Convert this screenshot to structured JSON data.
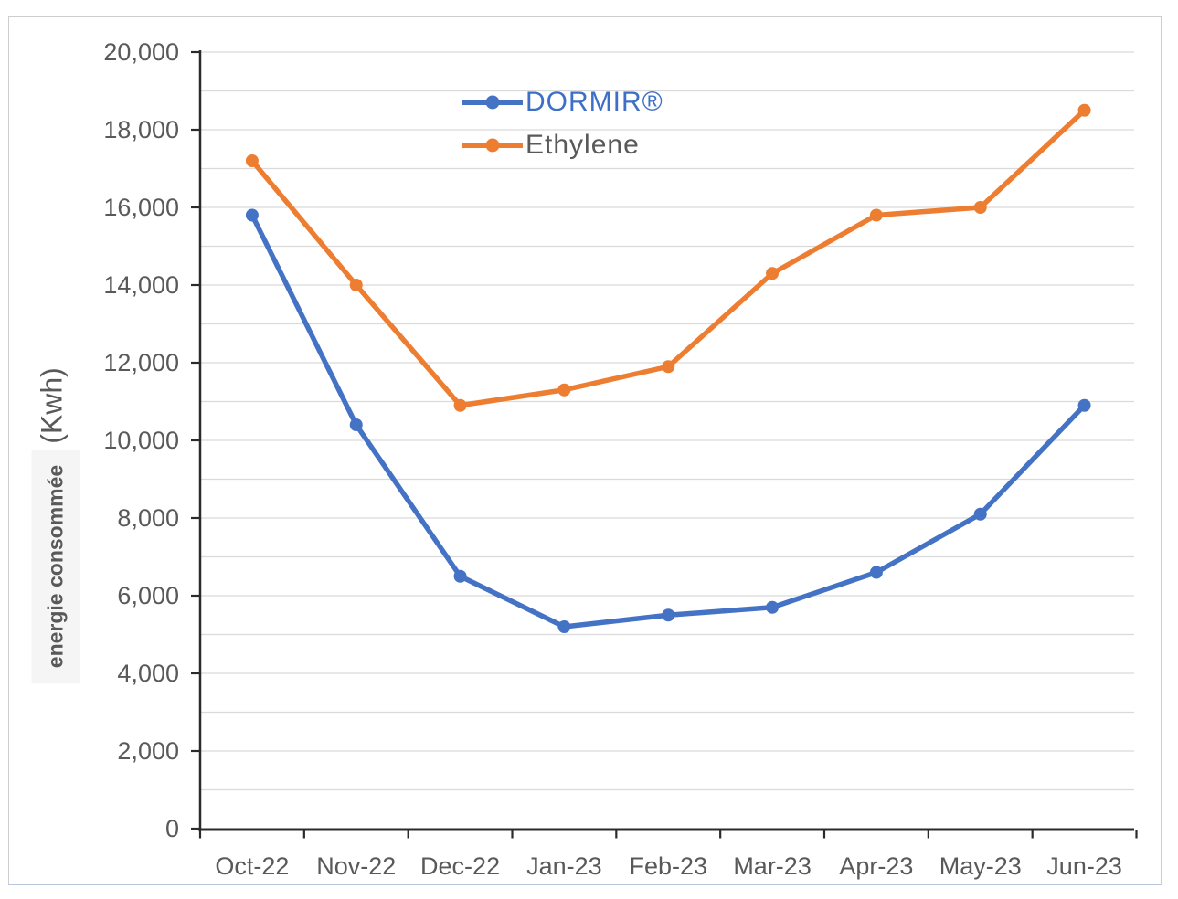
{
  "chart_data": {
    "type": "line",
    "title": "",
    "categories": [
      "Oct-22",
      "Nov-22",
      "Dec-22",
      "Jan-23",
      "Feb-23",
      "Mar-23",
      "Apr-23",
      "May-23",
      "Jun-23"
    ],
    "series": [
      {
        "name": "DORMIR®",
        "color": "#4472C4",
        "values": [
          15800,
          10400,
          6500,
          5200,
          5500,
          5700,
          6600,
          8100,
          10900
        ]
      },
      {
        "name": "Ethylene",
        "color": "#ED7D31",
        "values": [
          17200,
          14000,
          10900,
          11300,
          11900,
          14300,
          15800,
          16000,
          18500
        ]
      }
    ],
    "xlabel": "",
    "ylabel": "energie consommée (Kwh)",
    "ylim": [
      0,
      20000
    ],
    "ytick_interval": 2000,
    "gridline_interval": 1000,
    "grid": true,
    "marker": "circle",
    "legend_position": "top-center-inside"
  },
  "y_axis": {
    "unit_label": "(Kwh)",
    "title": "energie consommée",
    "tick_labels": [
      "0",
      "2,000",
      "4,000",
      "6,000",
      "8,000",
      "10,000",
      "12,000",
      "14,000",
      "16,000",
      "18,000",
      "20,000"
    ]
  },
  "legend": {
    "items": [
      {
        "label": "DORMIR®",
        "line_color": "#4472C4",
        "text_color": "#3E6FC7"
      },
      {
        "label": "Ethylene",
        "line_color": "#ED7D31",
        "text_color": "#595959"
      }
    ]
  },
  "colors": {
    "gridline": "#DADADA",
    "axis": "#2B2B2B",
    "tick_text": "#595959",
    "frame_border": "#CDCDCD",
    "ylabel_bg": "#F5F5F5"
  }
}
